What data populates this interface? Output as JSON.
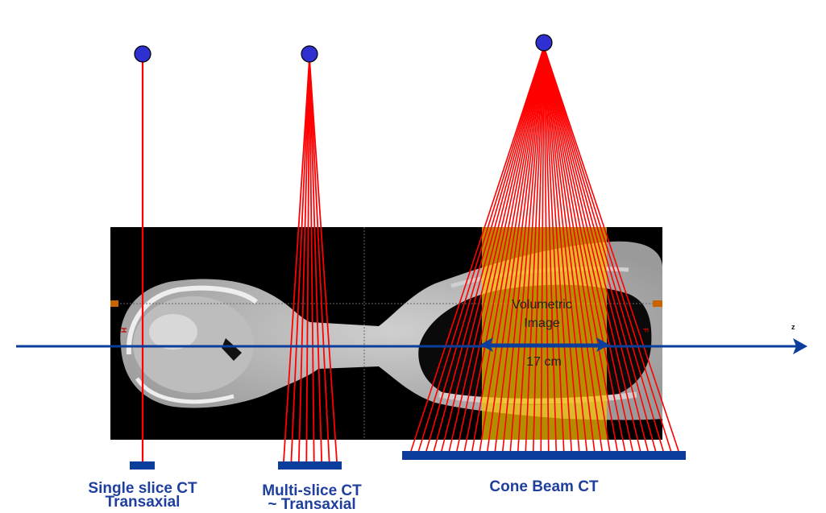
{
  "labels": {
    "single_line1": "Single slice CT",
    "single_line2": "Transaxial",
    "multi_line1": "Multi-slice CT",
    "multi_line2": "~ Transaxial",
    "cone": "Cone Beam CT",
    "volumetric_line1": "Volumetric",
    "volumetric_line2": "Image",
    "width": "17 cm",
    "axis": "z",
    "marker_left": "H",
    "marker_right": "F"
  },
  "colors": {
    "beam": "#ff0000",
    "source": "#3030d0",
    "detector": "#0a3d9c",
    "axis": "#0a3d9c",
    "volume": "#f5c400"
  },
  "beams": {
    "single_count": 1,
    "multi_count": 8,
    "cone_count": 36
  }
}
